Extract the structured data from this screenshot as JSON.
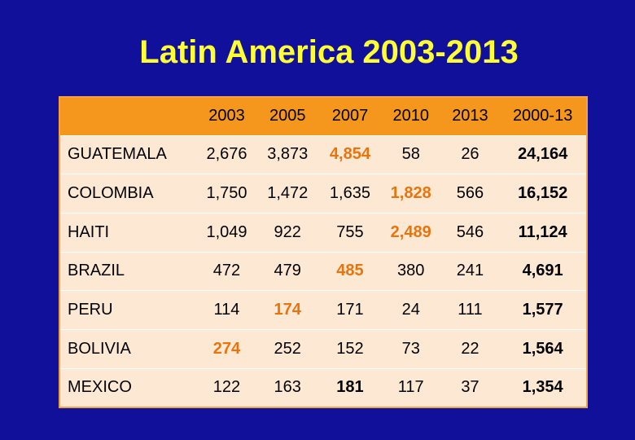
{
  "title": "Latin America 2003-2013",
  "columns": [
    "",
    "2003",
    "2005",
    "2007",
    "2010",
    "2013",
    "2000-13"
  ],
  "rows": [
    {
      "country": "GUATEMALA",
      "values": [
        "2,676",
        "3,873",
        "4,854",
        "58",
        "26",
        "24,164"
      ],
      "styles": [
        "",
        "",
        "hl",
        "",
        "",
        "total"
      ]
    },
    {
      "country": "COLOMBIA",
      "values": [
        "1,750",
        "1,472",
        "1,635",
        "1,828",
        "566",
        "16,152"
      ],
      "styles": [
        "",
        "",
        "",
        "hl",
        "",
        "total"
      ]
    },
    {
      "country": "HAITI",
      "values": [
        "1,049",
        "922",
        "755",
        "2,489",
        "546",
        "11,124"
      ],
      "styles": [
        "",
        "",
        "",
        "hl",
        "",
        "total"
      ]
    },
    {
      "country": "BRAZIL",
      "values": [
        "472",
        "479",
        "485",
        "380",
        "241",
        "4,691"
      ],
      "styles": [
        "",
        "",
        "hl",
        "",
        "",
        "total"
      ]
    },
    {
      "country": "PERU",
      "values": [
        "114",
        "174",
        "171",
        "24",
        "111",
        "1,577"
      ],
      "styles": [
        "",
        "hl",
        "",
        "",
        "",
        "total"
      ]
    },
    {
      "country": "BOLIVIA",
      "values": [
        "274",
        "252",
        "152",
        "73",
        "22",
        "1,564"
      ],
      "styles": [
        "hl",
        "",
        "",
        "",
        "",
        "total"
      ]
    },
    {
      "country": "MEXICO",
      "values": [
        "122",
        "163",
        "181",
        "117",
        "37",
        "1,354"
      ],
      "styles": [
        "",
        "",
        "b",
        "",
        "",
        "total"
      ]
    }
  ],
  "colors": {
    "background": "#10109a",
    "title": "#ffff33",
    "header": "#f5961d",
    "table": "#fde8d3",
    "highlight": "#e8740e"
  }
}
